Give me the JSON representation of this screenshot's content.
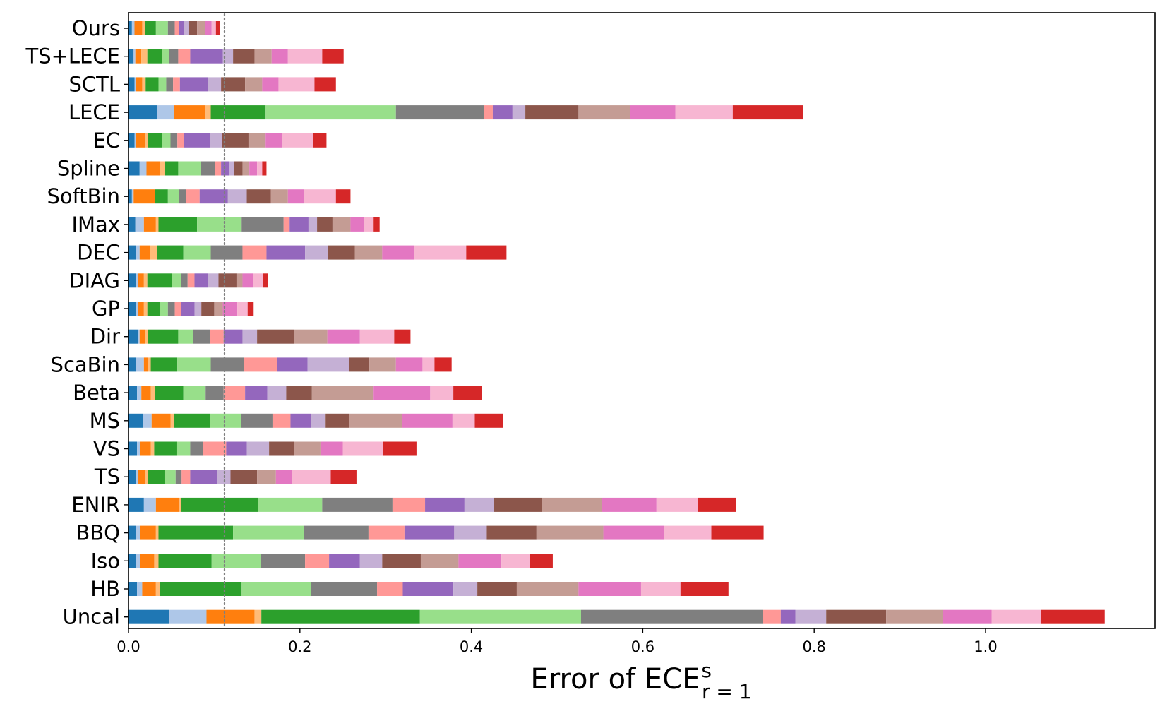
{
  "chart_data": {
    "type": "bar",
    "orientation": "horizontal",
    "stacked": true,
    "xlabel": {
      "main": "Error of ECE",
      "superscript": "s",
      "subscript": "r = 1"
    },
    "xlim": [
      0,
      1.19
    ],
    "x_ticks": [
      "0.0",
      "0.2",
      "0.4",
      "0.6",
      "0.8",
      "1.0"
    ],
    "x_tick_values": [
      0,
      0.2,
      0.4,
      0.6,
      0.8,
      1.0
    ],
    "reference_line": {
      "x": 0.112,
      "style": "dotted",
      "color": "#7f7f7f"
    },
    "grid": false,
    "legend": "none",
    "segment_colors": [
      "#1f77b4",
      "#aec7e8",
      "#ff7f0e",
      "#ffbb78",
      "#2ca02c",
      "#98df8a",
      "#7f7f7f",
      "#ff9896",
      "#9467bd",
      "#c5b0d5",
      "#8c564b",
      "#c49c94",
      "#e377c2",
      "#f7b6d2",
      "#d62728"
    ],
    "categories": [
      "Ours",
      "TS+LECE",
      "SCTL",
      "LECE",
      "EC",
      "Spline",
      "SoftBin",
      "IMax",
      "DEC",
      "DIAG",
      "GP",
      "Dir",
      "ScaBin",
      "Beta",
      "MS",
      "VS",
      "TS",
      "ENIR",
      "BBQ",
      "Iso",
      "HB",
      "Uncal"
    ],
    "segments": [
      [
        0.004,
        0.003,
        0.009,
        0.003,
        0.013,
        0.014,
        0.008,
        0.005,
        0.006,
        0.005,
        0.01,
        0.009,
        0.008,
        0.005,
        0.005
      ],
      [
        0.006,
        0.002,
        0.007,
        0.007,
        0.017,
        0.008,
        0.011,
        0.014,
        0.038,
        0.012,
        0.025,
        0.02,
        0.019,
        0.04,
        0.025
      ],
      [
        0.007,
        0.002,
        0.007,
        0.004,
        0.015,
        0.009,
        0.008,
        0.008,
        0.033,
        0.015,
        0.028,
        0.02,
        0.019,
        0.042,
        0.025
      ],
      [
        0.033,
        0.02,
        0.037,
        0.006,
        0.064,
        0.152,
        0.103,
        0.01,
        0.023,
        0.015,
        0.062,
        0.06,
        0.053,
        0.067,
        0.082
      ],
      [
        0.007,
        0.002,
        0.01,
        0.004,
        0.016,
        0.01,
        0.008,
        0.008,
        0.03,
        0.014,
        0.031,
        0.02,
        0.019,
        0.036,
        0.016
      ],
      [
        0.013,
        0.008,
        0.016,
        0.005,
        0.016,
        0.026,
        0.017,
        0.007,
        0.01,
        0.005,
        0.01,
        0.008,
        0.009,
        0.006,
        0.005
      ],
      [
        0.004,
        0.002,
        0.025,
        0.0,
        0.015,
        0.013,
        0.008,
        0.016,
        0.033,
        0.022,
        0.028,
        0.02,
        0.019,
        0.037,
        0.017
      ],
      [
        0.008,
        0.01,
        0.014,
        0.003,
        0.045,
        0.052,
        0.049,
        0.007,
        0.022,
        0.01,
        0.018,
        0.021,
        0.016,
        0.011,
        0.007
      ],
      [
        0.009,
        0.004,
        0.012,
        0.008,
        0.031,
        0.032,
        0.037,
        0.028,
        0.045,
        0.027,
        0.031,
        0.032,
        0.037,
        0.061,
        0.047
      ],
      [
        0.009,
        0.002,
        0.007,
        0.004,
        0.029,
        0.01,
        0.008,
        0.008,
        0.016,
        0.012,
        0.021,
        0.007,
        0.012,
        0.012,
        0.006
      ],
      [
        0.009,
        0.002,
        0.007,
        0.004,
        0.015,
        0.009,
        0.008,
        0.007,
        0.016,
        0.008,
        0.015,
        0.01,
        0.017,
        0.012,
        0.007
      ],
      [
        0.011,
        0.002,
        0.006,
        0.004,
        0.035,
        0.017,
        0.02,
        0.016,
        0.022,
        0.017,
        0.043,
        0.039,
        0.038,
        0.04,
        0.019
      ],
      [
        0.009,
        0.009,
        0.005,
        0.003,
        0.031,
        0.039,
        0.039,
        0.038,
        0.036,
        0.048,
        0.024,
        0.031,
        0.031,
        0.014,
        0.02
      ],
      [
        0.01,
        0.005,
        0.011,
        0.005,
        0.033,
        0.026,
        0.021,
        0.025,
        0.026,
        0.022,
        0.03,
        0.072,
        0.066,
        0.027,
        0.033
      ],
      [
        0.017,
        0.01,
        0.022,
        0.004,
        0.042,
        0.036,
        0.037,
        0.021,
        0.024,
        0.017,
        0.027,
        0.062,
        0.059,
        0.026,
        0.033
      ],
      [
        0.01,
        0.004,
        0.012,
        0.004,
        0.026,
        0.016,
        0.015,
        0.027,
        0.024,
        0.026,
        0.029,
        0.031,
        0.026,
        0.047,
        0.039
      ],
      [
        0.009,
        0.002,
        0.009,
        0.003,
        0.019,
        0.013,
        0.007,
        0.01,
        0.031,
        0.016,
        0.031,
        0.022,
        0.019,
        0.045,
        0.03
      ],
      [
        0.018,
        0.014,
        0.027,
        0.002,
        0.09,
        0.075,
        0.082,
        0.038,
        0.046,
        0.034,
        0.056,
        0.07,
        0.064,
        0.048,
        0.045
      ],
      [
        0.009,
        0.005,
        0.018,
        0.003,
        0.087,
        0.083,
        0.075,
        0.042,
        0.058,
        0.038,
        0.058,
        0.078,
        0.071,
        0.055,
        0.061
      ],
      [
        0.009,
        0.005,
        0.016,
        0.005,
        0.062,
        0.057,
        0.052,
        0.028,
        0.036,
        0.026,
        0.045,
        0.044,
        0.05,
        0.033,
        0.027
      ],
      [
        0.01,
        0.006,
        0.016,
        0.005,
        0.095,
        0.081,
        0.077,
        0.03,
        0.059,
        0.028,
        0.046,
        0.072,
        0.073,
        0.046,
        0.056
      ],
      [
        0.047,
        0.044,
        0.056,
        0.008,
        0.185,
        0.188,
        0.212,
        0.021,
        0.017,
        0.036,
        0.07,
        0.066,
        0.057,
        0.058,
        0.074
      ]
    ]
  }
}
